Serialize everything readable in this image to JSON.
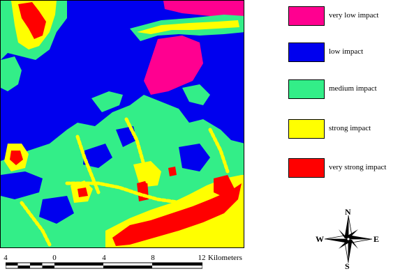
{
  "legend": {
    "items": [
      {
        "label": "very low impact",
        "color": "#ff0090"
      },
      {
        "label": "low impact",
        "color": "#0000ee"
      },
      {
        "label": "medium impact",
        "color": "#33ee88"
      },
      {
        "label": "strong impact",
        "color": "#ffff00"
      },
      {
        "label": "very strong impact",
        "color": "#ff0000"
      }
    ]
  },
  "scale_bar": {
    "tick_labels": [
      "4",
      "0",
      "4",
      "8",
      "12"
    ],
    "unit": "Kilometers"
  },
  "compass": {
    "north": "N",
    "south": "S",
    "east": "E",
    "west": "W"
  }
}
